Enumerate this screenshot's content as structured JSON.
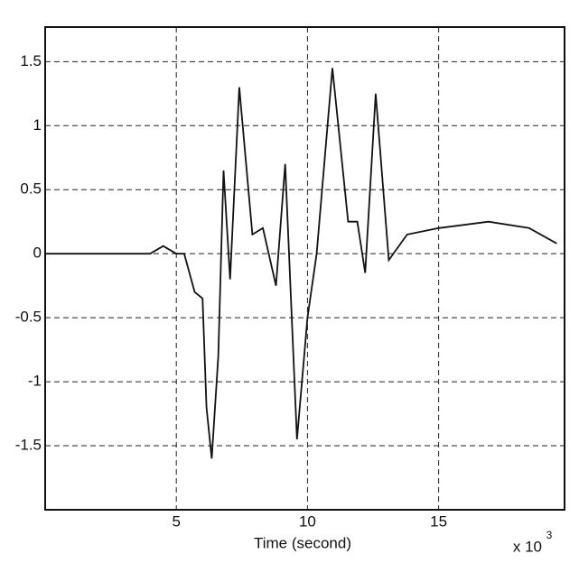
{
  "chart_data": {
    "type": "line",
    "xlabel": "Time (second)",
    "x_multiplier": "x 10",
    "x_exponent": "3",
    "x": [
      0,
      2,
      4,
      4.5,
      5,
      5.3,
      5.7,
      6,
      6.15,
      6.35,
      6.6,
      6.8,
      7.05,
      7.4,
      7.9,
      8.3,
      8.8,
      9.15,
      9.6,
      10,
      10.35,
      10.95,
      11.55,
      11.9,
      12.2,
      12.6,
      13.1,
      13.8,
      15,
      16.9,
      18.45,
      19.5
    ],
    "series": [
      {
        "color": "#111111",
        "values": [
          0,
          0,
          0,
          0.06,
          0,
          0,
          -0.3,
          -0.35,
          -1.2,
          -1.6,
          -0.8,
          0.65,
          -0.2,
          1.3,
          0.15,
          0.2,
          -0.25,
          0.7,
          -1.45,
          -0.5,
          0,
          1.45,
          0.25,
          0.25,
          -0.15,
          1.25,
          -0.05,
          0.15,
          0.2,
          0.25,
          0.2,
          0.08
        ]
      }
    ],
    "xlim": [
      0,
      19.8
    ],
    "xticks": [
      5,
      10,
      15
    ],
    "ylim": [
      -2,
      1.77
    ],
    "yticks": [
      -1.5,
      -1,
      -0.5,
      0,
      0.5,
      1,
      1.5
    ],
    "grid": true
  }
}
